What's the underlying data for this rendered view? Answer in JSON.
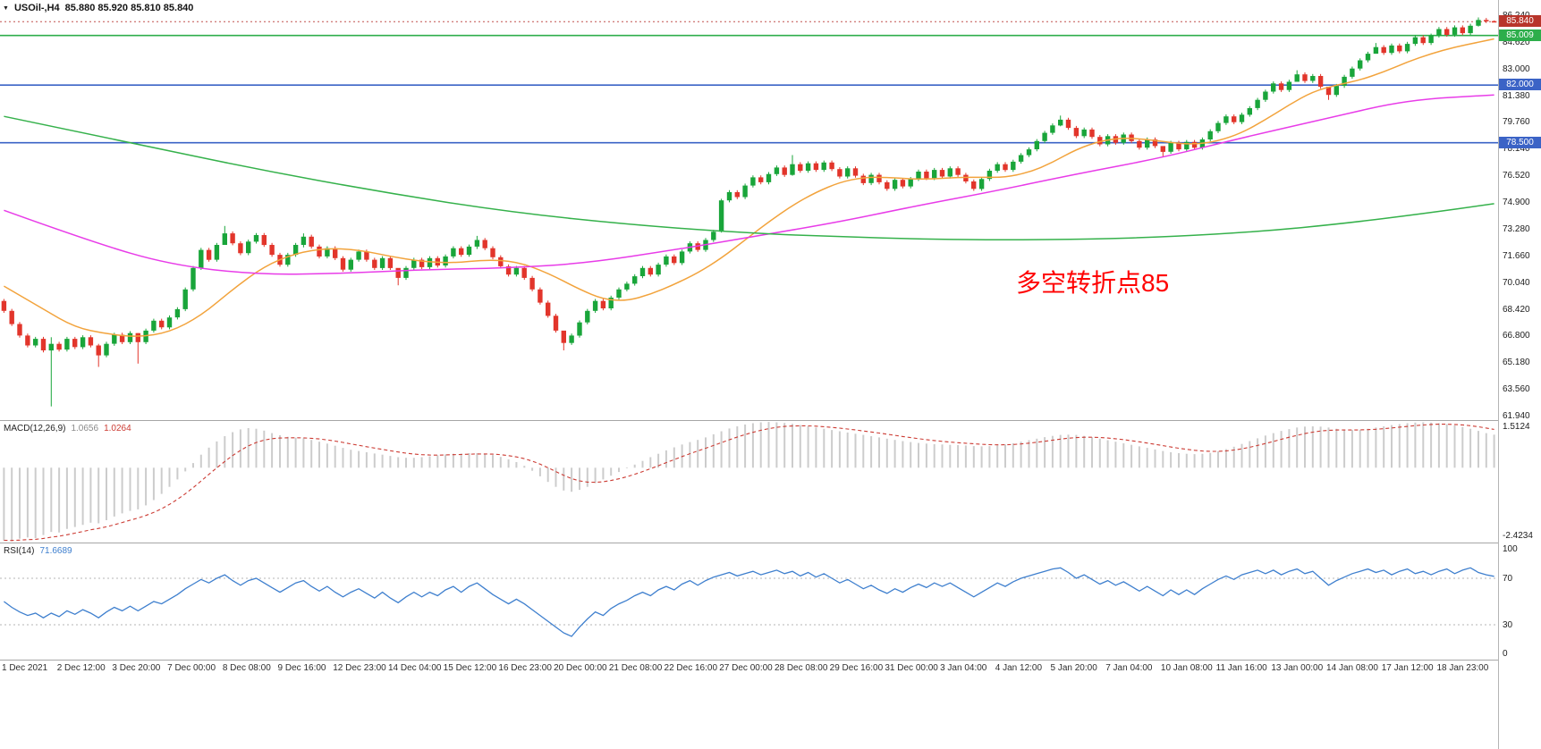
{
  "header": {
    "collapse_icon": "▼",
    "symbol": "USOil-,H4",
    "ohlc": "85.880 85.920 85.810 85.840"
  },
  "annotation": {
    "text": "多空转折点85",
    "color": "#ff0000"
  },
  "price_axis": {
    "labels": [
      "86.240",
      "84.620",
      "83.000",
      "81.380",
      "79.760",
      "78.140",
      "76.520",
      "74.900",
      "73.280",
      "71.660",
      "70.040",
      "68.420",
      "66.800",
      "65.180",
      "63.560",
      "61.940"
    ],
    "badges": [
      {
        "value": "85.840",
        "price": 85.84,
        "color": "#b8352b",
        "name": "bid-price-badge"
      },
      {
        "value": "85.009",
        "price": 85.009,
        "color": "#2dae4b",
        "name": "hline-85-badge"
      },
      {
        "value": "82.000",
        "price": 82.0,
        "color": "#3b63c6",
        "name": "hline-82-badge"
      },
      {
        "value": "78.500",
        "price": 78.5,
        "color": "#3b63c6",
        "name": "hline-78-badge"
      }
    ]
  },
  "macd_panel": {
    "name": "MACD(12,26,9)",
    "value_main": "1.0656",
    "value_signal": "1.0264",
    "axis_max": "1.5124",
    "axis_min": "-2.4234"
  },
  "rsi_panel": {
    "name": "RSI(14)",
    "value": "71.6689",
    "axis_labels": [
      "100",
      "70",
      "30",
      "0"
    ]
  },
  "time_axis": {
    "labels": [
      "1 Dec 2021",
      "2 Dec 12:00",
      "3 Dec 20:00",
      "7 Dec 00:00",
      "8 Dec 08:00",
      "9 Dec 16:00",
      "12 Dec 23:00",
      "14 Dec 04:00",
      "15 Dec 12:00",
      "16 Dec 23:00",
      "20 Dec 00:00",
      "21 Dec 08:00",
      "22 Dec 16:00",
      "27 Dec 00:00",
      "28 Dec 08:00",
      "29 Dec 16:00",
      "31 Dec 00:00",
      "3 Jan 04:00",
      "4 Jan 12:00",
      "5 Jan 20:00",
      "7 Jan 04:00",
      "10 Jan 08:00",
      "11 Jan 16:00",
      "13 Jan 00:00",
      "14 Jan 08:00",
      "17 Jan 12:00",
      "18 Jan 23:00"
    ]
  },
  "colors": {
    "up": "#19a53a",
    "down": "#e2352b",
    "macd_hist": "#cccccc",
    "macd_signal": "#cc3b33",
    "rsi_line": "#3e7fce",
    "bid_line": "#c0504d"
  },
  "chart_data": {
    "type": "candlestick",
    "symbol": "USOil-",
    "timeframe": "H4",
    "last_ohlc": {
      "open": 85.88,
      "high": 85.92,
      "low": 85.81,
      "close": 85.84
    },
    "price_axis_range": [
      61.94,
      86.24
    ],
    "hlines": [
      {
        "price": 85.009,
        "color": "#2dae4b",
        "label": "85.009"
      },
      {
        "price": 82.0,
        "color": "#3b63c6",
        "label": "82.000"
      },
      {
        "price": 78.5,
        "color": "#3b63c6",
        "label": "78.500"
      }
    ],
    "candles": {
      "first_open": 68.9,
      "closes": [
        68.3,
        67.5,
        66.8,
        66.2,
        66.6,
        65.9,
        66.3,
        65.95,
        66.6,
        66.1,
        66.7,
        66.2,
        65.6,
        66.3,
        66.85,
        66.4,
        66.95,
        66.4,
        67.1,
        67.7,
        67.3,
        67.9,
        68.4,
        69.6,
        70.9,
        72.0,
        71.4,
        72.3,
        73.0,
        72.4,
        71.8,
        72.5,
        72.9,
        72.3,
        71.7,
        71.1,
        71.7,
        72.3,
        72.8,
        72.2,
        71.6,
        72.1,
        71.5,
        70.8,
        71.4,
        71.9,
        71.4,
        70.9,
        71.5,
        70.9,
        70.3,
        70.9,
        71.4,
        70.95,
        71.5,
        71.05,
        71.6,
        72.1,
        71.7,
        72.2,
        72.6,
        72.1,
        71.55,
        71.0,
        70.5,
        70.9,
        70.3,
        69.6,
        68.8,
        68.0,
        67.1,
        66.35,
        66.8,
        67.6,
        68.3,
        68.9,
        68.45,
        69.1,
        69.6,
        69.95,
        70.4,
        70.9,
        70.5,
        71.1,
        71.6,
        71.2,
        71.9,
        72.4,
        72.0,
        72.6,
        73.1,
        75.0,
        75.5,
        75.2,
        75.9,
        76.4,
        76.1,
        76.6,
        77.0,
        76.55,
        77.2,
        76.8,
        77.25,
        76.85,
        77.3,
        76.9,
        76.45,
        76.95,
        76.5,
        76.05,
        76.55,
        76.1,
        75.7,
        76.25,
        75.85,
        76.3,
        76.75,
        76.35,
        76.85,
        76.45,
        76.95,
        76.55,
        76.15,
        75.7,
        76.3,
        76.8,
        77.2,
        76.85,
        77.35,
        77.75,
        78.1,
        78.6,
        79.1,
        79.55,
        79.9,
        79.4,
        78.9,
        79.3,
        78.85,
        78.4,
        78.9,
        78.5,
        79.0,
        78.6,
        78.2,
        78.7,
        78.3,
        77.95,
        78.5,
        78.1,
        78.55,
        78.2,
        78.7,
        79.2,
        79.7,
        80.1,
        79.75,
        80.2,
        80.6,
        81.1,
        81.6,
        82.1,
        81.7,
        82.2,
        82.65,
        82.25,
        82.55,
        81.9,
        81.4,
        81.95,
        82.5,
        83.0,
        83.5,
        83.9,
        84.3,
        83.95,
        84.4,
        84.05,
        84.5,
        84.9,
        84.55,
        85.0,
        85.4,
        85.05,
        85.5,
        85.15,
        85.6,
        85.95,
        85.88,
        85.84
      ],
      "wicks": {
        "6": [
          66.7,
          62.5
        ],
        "12": [
          66.3,
          64.9
        ],
        "17": [
          66.95,
          65.1
        ],
        "28": [
          73.45,
          72.35
        ],
        "38": [
          73.0,
          72.15
        ],
        "50": [
          70.85,
          69.85
        ],
        "60": [
          72.85,
          72.05
        ],
        "71": [
          67.05,
          65.9
        ],
        "91": [
          75.1,
          73.05
        ],
        "100": [
          77.75,
          76.5
        ],
        "134": [
          80.15,
          79.5
        ],
        "147": [
          78.25,
          77.65
        ],
        "164": [
          82.9,
          82.2
        ],
        "168": [
          81.9,
          81.1
        ],
        "174": [
          84.55,
          83.9
        ],
        "187": [
          86.1,
          85.55
        ],
        "189": [
          85.92,
          85.81
        ]
      }
    },
    "moving_averages": [
      {
        "name": "fast-orange",
        "color": "#f2a33c",
        "points": [
          [
            0,
            69.8
          ],
          [
            5,
            68.4
          ],
          [
            9,
            67.3
          ],
          [
            13,
            66.9
          ],
          [
            17,
            66.7
          ],
          [
            21,
            67.0
          ],
          [
            25,
            68.0
          ],
          [
            29,
            69.6
          ],
          [
            33,
            71.0
          ],
          [
            37,
            71.8
          ],
          [
            41,
            72.1
          ],
          [
            45,
            72.0
          ],
          [
            49,
            71.6
          ],
          [
            53,
            71.3
          ],
          [
            57,
            71.2
          ],
          [
            61,
            71.4
          ],
          [
            65,
            71.3
          ],
          [
            69,
            70.6
          ],
          [
            73,
            69.6
          ],
          [
            76,
            69.0
          ],
          [
            79,
            68.9
          ],
          [
            82,
            69.3
          ],
          [
            85,
            69.9
          ],
          [
            88,
            70.6
          ],
          [
            91,
            71.5
          ],
          [
            94,
            72.6
          ],
          [
            97,
            73.7
          ],
          [
            100,
            74.7
          ],
          [
            103,
            75.5
          ],
          [
            106,
            76.1
          ],
          [
            109,
            76.4
          ],
          [
            112,
            76.4
          ],
          [
            115,
            76.3
          ],
          [
            118,
            76.3
          ],
          [
            121,
            76.4
          ],
          [
            124,
            76.4
          ],
          [
            127,
            76.4
          ],
          [
            130,
            76.7
          ],
          [
            133,
            77.3
          ],
          [
            136,
            78.1
          ],
          [
            139,
            78.6
          ],
          [
            142,
            78.8
          ],
          [
            145,
            78.7
          ],
          [
            148,
            78.5
          ],
          [
            151,
            78.4
          ],
          [
            154,
            78.6
          ],
          [
            157,
            79.1
          ],
          [
            160,
            79.9
          ],
          [
            163,
            80.8
          ],
          [
            166,
            81.6
          ],
          [
            169,
            82.0
          ],
          [
            172,
            82.3
          ],
          [
            175,
            82.8
          ],
          [
            178,
            83.4
          ],
          [
            181,
            83.9
          ],
          [
            184,
            84.3
          ],
          [
            187,
            84.6
          ],
          [
            189,
            84.8
          ]
        ]
      },
      {
        "name": "medium-magenta",
        "color": "#e83ce8",
        "points": [
          [
            0,
            74.4
          ],
          [
            11,
            72.5
          ],
          [
            21,
            71.1
          ],
          [
            32,
            70.5
          ],
          [
            42,
            70.55
          ],
          [
            53,
            70.8
          ],
          [
            64,
            70.9
          ],
          [
            74,
            71.2
          ],
          [
            85,
            72.0
          ],
          [
            95,
            72.8
          ],
          [
            106,
            73.7
          ],
          [
            115,
            74.6
          ],
          [
            126,
            75.6
          ],
          [
            136,
            76.6
          ],
          [
            147,
            77.6
          ],
          [
            157,
            78.8
          ],
          [
            168,
            80.0
          ],
          [
            178,
            81.1
          ],
          [
            189,
            81.4
          ]
        ]
      },
      {
        "name": "slow-green",
        "color": "#35b14b",
        "points": [
          [
            0,
            80.1
          ],
          [
            16,
            78.5
          ],
          [
            32,
            76.9
          ],
          [
            48,
            75.5
          ],
          [
            64,
            74.3
          ],
          [
            80,
            73.5
          ],
          [
            95,
            73.0
          ],
          [
            106,
            72.8
          ],
          [
            117,
            72.65
          ],
          [
            127,
            72.6
          ],
          [
            138,
            72.65
          ],
          [
            148,
            72.8
          ],
          [
            159,
            73.1
          ],
          [
            170,
            73.6
          ],
          [
            180,
            74.2
          ],
          [
            189,
            74.8
          ]
        ]
      }
    ],
    "macd": {
      "params": "12,26,9",
      "current": 1.0656,
      "signal_current": 1.0264,
      "range_max": 1.5124,
      "range_min": -2.4234,
      "values": [
        -2.35,
        -2.38,
        -2.3,
        -2.26,
        -2.28,
        -2.18,
        -2.08,
        -2.1,
        -1.98,
        -1.92,
        -1.85,
        -1.78,
        -1.8,
        -1.7,
        -1.58,
        -1.48,
        -1.4,
        -1.35,
        -1.22,
        -1.05,
        -0.85,
        -0.62,
        -0.38,
        -0.12,
        0.15,
        0.42,
        0.65,
        0.85,
        1.02,
        1.15,
        1.24,
        1.28,
        1.26,
        1.2,
        1.12,
        1.05,
        1.0,
        0.97,
        0.95,
        0.9,
        0.84,
        0.78,
        0.71,
        0.64,
        0.58,
        0.54,
        0.5,
        0.46,
        0.42,
        0.38,
        0.34,
        0.32,
        0.32,
        0.34,
        0.37,
        0.4,
        0.43,
        0.45,
        0.46,
        0.47,
        0.47,
        0.45,
        0.41,
        0.35,
        0.27,
        0.18,
        0.06,
        -0.1,
        -0.28,
        -0.46,
        -0.62,
        -0.74,
        -0.78,
        -0.72,
        -0.62,
        -0.5,
        -0.38,
        -0.26,
        -0.14,
        -0.02,
        0.1,
        0.22,
        0.34,
        0.45,
        0.56,
        0.66,
        0.75,
        0.83,
        0.9,
        0.98,
        1.08,
        1.18,
        1.27,
        1.34,
        1.4,
        1.44,
        1.47,
        1.48,
        1.47,
        1.45,
        1.42,
        1.38,
        1.34,
        1.3,
        1.26,
        1.22,
        1.18,
        1.14,
        1.1,
        1.06,
        1.02,
        0.98,
        0.94,
        0.9,
        0.86,
        0.83,
        0.8,
        0.78,
        0.76,
        0.75,
        0.74,
        0.73,
        0.72,
        0.7,
        0.69,
        0.7,
        0.72,
        0.75,
        0.79,
        0.84,
        0.89,
        0.94,
        0.99,
        1.03,
        1.06,
        1.07,
        1.06,
        1.03,
        0.99,
        0.94,
        0.89,
        0.84,
        0.79,
        0.74,
        0.69,
        0.64,
        0.59,
        0.54,
        0.5,
        0.47,
        0.45,
        0.44,
        0.45,
        0.48,
        0.53,
        0.6,
        0.68,
        0.77,
        0.86,
        0.95,
        1.04,
        1.12,
        1.19,
        1.25,
        1.3,
        1.33,
        1.34,
        1.33,
        1.3,
        1.26,
        1.23,
        1.22,
        1.23,
        1.26,
        1.3,
        1.34,
        1.38,
        1.41,
        1.44,
        1.46,
        1.47,
        1.46,
        1.44,
        1.41,
        1.37,
        1.32,
        1.26,
        1.19,
        1.12,
        1.07
      ]
    },
    "rsi": {
      "params": "14",
      "current": 71.6689,
      "levels": [
        70,
        30
      ],
      "values": [
        50,
        45,
        41,
        38,
        40,
        36,
        40,
        37,
        42,
        39,
        43,
        40,
        36,
        41,
        45,
        42,
        46,
        42,
        46,
        50,
        48,
        52,
        56,
        61,
        65,
        69,
        66,
        70,
        73,
        68,
        64,
        68,
        70,
        66,
        62,
        58,
        62,
        66,
        68,
        63,
        59,
        63,
        58,
        54,
        58,
        61,
        57,
        53,
        58,
        53,
        49,
        54,
        58,
        54,
        58,
        55,
        60,
        63,
        58,
        63,
        66,
        61,
        56,
        52,
        48,
        52,
        48,
        43,
        38,
        33,
        28,
        23,
        20,
        28,
        35,
        41,
        38,
        44,
        48,
        51,
        55,
        58,
        55,
        60,
        63,
        60,
        65,
        68,
        64,
        68,
        71,
        73,
        75,
        72,
        74,
        76,
        73,
        75,
        77,
        74,
        76,
        72,
        75,
        71,
        74,
        70,
        66,
        69,
        65,
        61,
        64,
        60,
        57,
        61,
        58,
        62,
        65,
        62,
        66,
        63,
        66,
        62,
        58,
        54,
        58,
        62,
        66,
        63,
        67,
        70,
        72,
        74,
        76,
        78,
        79,
        75,
        70,
        73,
        69,
        65,
        68,
        64,
        67,
        63,
        59,
        63,
        59,
        55,
        60,
        56,
        60,
        56,
        61,
        65,
        69,
        72,
        69,
        73,
        75,
        77,
        74,
        77,
        73,
        76,
        78,
        74,
        76,
        70,
        64,
        68,
        71,
        74,
        76,
        78,
        75,
        77,
        73,
        76,
        78,
        74,
        76,
        73,
        76,
        78,
        74,
        77,
        79,
        75,
        73,
        71.7
      ]
    }
  }
}
